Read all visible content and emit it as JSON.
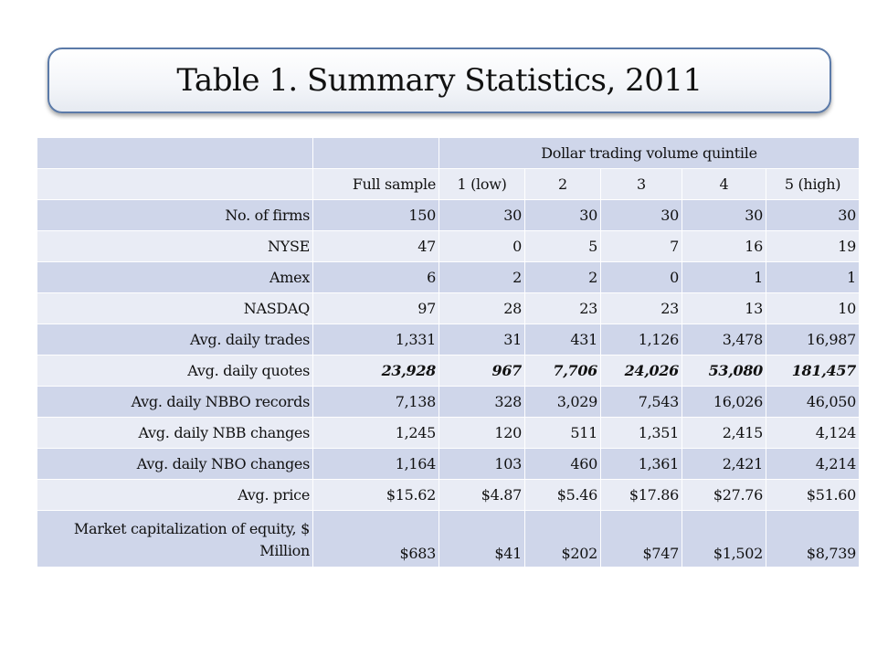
{
  "title": "Table 1. Summary Statistics, 2011",
  "table": {
    "group_header": "Dollar trading volume quintile",
    "columns": [
      "Full sample",
      "1 (low)",
      "2",
      "3",
      "4",
      "5 (high)"
    ],
    "rows": [
      {
        "label": "No. of firms",
        "values": [
          "150",
          "30",
          "30",
          "30",
          "30",
          "30"
        ]
      },
      {
        "label": "NYSE",
        "values": [
          "47",
          "0",
          "5",
          "7",
          "16",
          "19"
        ]
      },
      {
        "label": "Amex",
        "values": [
          "6",
          "2",
          "2",
          "0",
          "1",
          "1"
        ]
      },
      {
        "label": "NASDAQ",
        "values": [
          "97",
          "28",
          "23",
          "23",
          "13",
          "10"
        ]
      },
      {
        "label": "Avg. daily trades",
        "values": [
          "1,331",
          "31",
          "431",
          "1,126",
          "3,478",
          "16,987"
        ]
      },
      {
        "label": "Avg. daily quotes",
        "values": [
          "23,928",
          "967",
          "7,706",
          "24,026",
          "53,080",
          "181,457"
        ]
      },
      {
        "label": "Avg. daily NBBO records",
        "values": [
          "7,138",
          "328",
          "3,029",
          "7,543",
          "16,026",
          "46,050"
        ]
      },
      {
        "label": "Avg. daily NBB changes",
        "values": [
          "1,245",
          "120",
          "511",
          "1,351",
          "2,415",
          "4,124"
        ]
      },
      {
        "label": "Avg. daily NBO changes",
        "values": [
          "1,164",
          "103",
          "460",
          "1,361",
          "2,421",
          "4,214"
        ]
      },
      {
        "label": "Avg. price",
        "values": [
          "$15.62",
          "$4.87",
          "$5.46",
          "$17.86",
          "$27.76",
          "$51.60"
        ]
      },
      {
        "label": "Market capitalization of equity, $ Million",
        "values": [
          "$683",
          "$41",
          "$202",
          "$747",
          "$1,502",
          "$8,739"
        ]
      }
    ]
  },
  "colors": {
    "row_dark": "#cfd6ea",
    "row_light": "#e9ecf5",
    "title_border": "#5b7aa8"
  }
}
